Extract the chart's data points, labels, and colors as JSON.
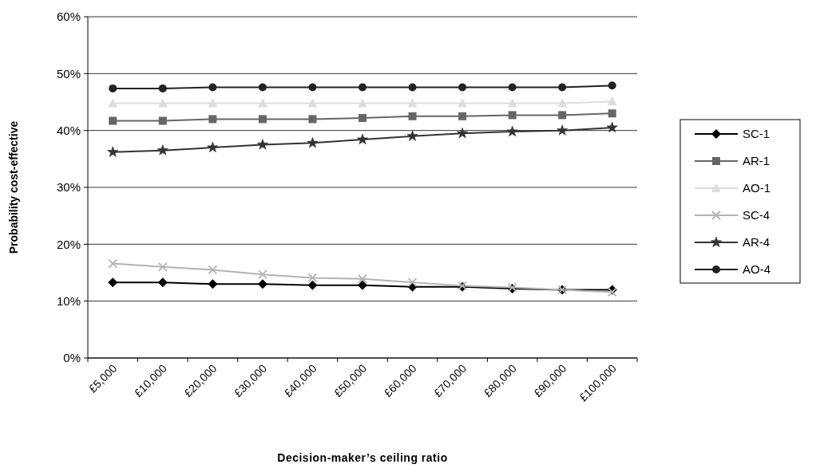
{
  "chart_data": {
    "type": "line",
    "xlabel": "Decision-maker’s ceiling ratio",
    "ylabel": "Probability cost-effective",
    "categories": [
      "£5,000",
      "£10,000",
      "£20,000",
      "£30,000",
      "£40,000",
      "£50,000",
      "£60,000",
      "£70,000",
      "£80,000",
      "£90,000",
      "£100,000"
    ],
    "ylim": [
      0,
      60
    ],
    "yticks": [
      {
        "value": 0,
        "label": "0%"
      },
      {
        "value": 10,
        "label": "10%"
      },
      {
        "value": 20,
        "label": "20%"
      },
      {
        "value": 30,
        "label": "30%"
      },
      {
        "value": 40,
        "label": "40%"
      },
      {
        "value": 50,
        "label": "50%"
      },
      {
        "value": 60,
        "label": "60%"
      }
    ],
    "grid": "y",
    "legend": "right",
    "series": [
      {
        "name": "SC-1",
        "color": "#000000",
        "marker": "diamond",
        "values": [
          13.3,
          13.3,
          13.0,
          13.0,
          12.8,
          12.8,
          12.5,
          12.5,
          12.2,
          12.0,
          12.0
        ]
      },
      {
        "name": "AR-1",
        "color": "#666666",
        "marker": "square",
        "values": [
          41.7,
          41.7,
          42.0,
          42.0,
          42.0,
          42.2,
          42.5,
          42.5,
          42.7,
          42.7,
          43.0
        ]
      },
      {
        "name": "AO-1",
        "color": "#dddddd",
        "marker": "triangle",
        "values": [
          44.8,
          44.8,
          44.8,
          44.8,
          44.8,
          44.8,
          44.8,
          44.8,
          44.8,
          44.8,
          45.1
        ]
      },
      {
        "name": "SC-4",
        "color": "#b3b3b3",
        "marker": "cross",
        "values": [
          16.6,
          16.0,
          15.5,
          14.7,
          14.1,
          13.9,
          13.3,
          12.7,
          12.4,
          12.0,
          11.6
        ]
      },
      {
        "name": "AR-4",
        "color": "#333333",
        "marker": "star",
        "values": [
          36.2,
          36.5,
          37.0,
          37.5,
          37.8,
          38.4,
          39.0,
          39.5,
          39.8,
          40.0,
          40.5
        ]
      },
      {
        "name": "AO-4",
        "color": "#222222",
        "marker": "circle",
        "values": [
          47.4,
          47.4,
          47.6,
          47.6,
          47.6,
          47.6,
          47.6,
          47.6,
          47.6,
          47.6,
          47.9
        ]
      }
    ]
  }
}
